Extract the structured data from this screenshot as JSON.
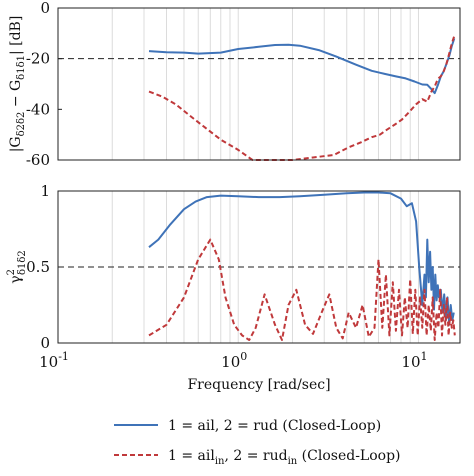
{
  "chart_data": [
    {
      "type": "line",
      "ylabel": "|G_{δ2δ2} − G_{δ1δ1}| [dB]",
      "ylabel_parts": [
        "|G",
        "δ2δ2",
        " − G",
        "δ1δ1",
        "| [dB]"
      ],
      "x_scale": "log",
      "xlim": [
        0.1,
        17
      ],
      "ylim": [
        -60,
        0
      ],
      "yticks": [
        0,
        -20,
        -40,
        -60
      ],
      "ytick_labels": [
        "0",
        "-20",
        "-40",
        "-60"
      ],
      "reference_line": -20,
      "vertical_grid": true,
      "series": [
        {
          "name": "1 = ail, 2 = rud (Closed-Loop)",
          "style": "solid",
          "color": "#3f73b8",
          "x": [
            0.32,
            0.4,
            0.5,
            0.6,
            0.8,
            1.0,
            1.3,
            1.6,
            1.9,
            2.2,
            2.8,
            3.5,
            4.5,
            5.5,
            6.5,
            7.5,
            8.5,
            9.5,
            10.5,
            11.2,
            11.8,
            12.3,
            12.8,
            13.3,
            13.8,
            14.3,
            14.8,
            15.3,
            15.8
          ],
          "y": [
            -17,
            -17.5,
            -17.6,
            -18,
            -17.6,
            -16.2,
            -15.3,
            -14.6,
            -14.5,
            -14.9,
            -16.6,
            -19.2,
            -22.4,
            -24.8,
            -26,
            -27,
            -27.8,
            -29,
            -30.2,
            -30.3,
            -32,
            -33.6,
            -30.5,
            -27,
            -25,
            -22,
            -19,
            -15,
            -12
          ]
        },
        {
          "name": "1 = ail_in, 2 = rud_in (Closed-Loop)",
          "style": "dashed",
          "color": "#c0393b",
          "x": [
            0.32,
            0.38,
            0.45,
            0.55,
            0.65,
            0.8,
            1.0,
            1.2,
            1.5,
            2.0,
            2.6,
            3.4,
            4.1,
            4.8,
            5.5,
            6.1,
            6.7,
            7.4,
            8.1,
            8.9,
            9.7,
            10.5,
            11.2,
            11.8,
            12.3,
            12.8,
            13.3,
            13.8,
            14.3,
            14.8,
            15.3,
            15.8
          ],
          "y": [
            -33,
            -35,
            -38,
            -43,
            -47,
            -52,
            -56,
            -60,
            -62,
            -60,
            -59,
            -58,
            -55,
            -53,
            -51,
            -50,
            -48,
            -46,
            -44,
            -41,
            -38,
            -36,
            -37,
            -33,
            -31,
            -28,
            -27,
            -25,
            -22,
            -18,
            -14,
            -11
          ]
        }
      ]
    },
    {
      "type": "line",
      "ylabel": "γ²_{δ1δ2}",
      "ylabel_parts": [
        "γ",
        "2",
        "δ1δ2"
      ],
      "xlabel": "Frequency [rad/sec]",
      "x_scale": "log",
      "xlim": [
        0.1,
        17
      ],
      "ylim": [
        0,
        1
      ],
      "yticks": [
        0,
        0.5,
        1
      ],
      "ytick_labels": [
        "0",
        "0.5",
        "1"
      ],
      "xticks": [
        0.1,
        1,
        10
      ],
      "xtick_labels": [
        [
          "10",
          "-1"
        ],
        [
          "10",
          "0"
        ],
        [
          "10",
          "1"
        ]
      ],
      "reference_line": 0.5,
      "vertical_grid": true,
      "legend_placement": "below-axes",
      "series": [
        {
          "name": "1 = ail, 2 = rud (Closed-Loop)",
          "style": "solid",
          "color": "#3f73b8",
          "x": [
            0.32,
            0.36,
            0.42,
            0.5,
            0.58,
            0.67,
            0.8,
            1.0,
            1.3,
            1.7,
            2.2,
            3.0,
            4.0,
            5.0,
            6.0,
            7.0,
            8.0,
            8.6,
            9.2,
            9.7,
            10.1,
            10.5,
            10.8,
            11.0,
            11.2,
            11.4,
            11.6,
            11.8,
            12.0,
            12.2,
            12.4,
            12.6,
            12.8,
            13.0,
            13.3,
            13.6,
            13.9,
            14.2,
            14.5,
            14.8,
            15.1,
            15.4,
            15.7
          ],
          "y": [
            0.63,
            0.68,
            0.78,
            0.88,
            0.93,
            0.96,
            0.97,
            0.965,
            0.96,
            0.96,
            0.965,
            0.975,
            0.985,
            0.99,
            0.99,
            0.985,
            0.95,
            0.9,
            0.92,
            0.8,
            0.5,
            0.25,
            0.45,
            0.3,
            0.68,
            0.4,
            0.6,
            0.35,
            0.5,
            0.22,
            0.45,
            0.28,
            0.38,
            0.3,
            0.35,
            0.2,
            0.32,
            0.15,
            0.3,
            0.12,
            0.25,
            0.15,
            0.2
          ]
        },
        {
          "name": "1 = ail_in, 2 = rud_in (Closed-Loop)",
          "style": "dashed",
          "color": "#c0393b",
          "x": [
            0.32,
            0.4,
            0.5,
            0.6,
            0.7,
            0.78,
            0.85,
            0.95,
            1.05,
            1.15,
            1.25,
            1.4,
            1.6,
            1.75,
            1.9,
            2.1,
            2.35,
            2.6,
            2.9,
            3.2,
            3.5,
            3.8,
            4.1,
            4.5,
            4.9,
            5.3,
            5.7,
            6.0,
            6.3,
            6.6,
            6.9,
            7.2,
            7.5,
            7.8,
            8.1,
            8.4,
            8.7,
            9.0,
            9.3,
            9.6,
            9.9,
            10.2,
            10.5,
            10.8,
            11.1,
            11.4,
            11.7,
            12.0,
            12.3,
            12.6,
            12.9,
            13.2,
            13.5,
            13.8,
            14.1,
            14.4,
            14.7,
            15.0,
            15.3,
            15.6,
            15.9
          ],
          "y": [
            0.05,
            0.12,
            0.3,
            0.55,
            0.68,
            0.55,
            0.3,
            0.12,
            0.05,
            0.02,
            0.1,
            0.32,
            0.12,
            0.02,
            0.25,
            0.35,
            0.12,
            0.06,
            0.2,
            0.32,
            0.1,
            0.03,
            0.2,
            0.1,
            0.25,
            0.04,
            0.1,
            0.55,
            0.1,
            0.45,
            0.05,
            0.4,
            0.08,
            0.35,
            0.05,
            0.3,
            0.1,
            0.42,
            0.06,
            0.35,
            0.05,
            0.3,
            0.1,
            0.35,
            0.05,
            0.25,
            0.08,
            0.3,
            0.02,
            0.2,
            0.1,
            0.35,
            0.05,
            0.25,
            0.12,
            0.3,
            0.05,
            0.2,
            0.1,
            0.15,
            0.05
          ]
        }
      ]
    }
  ],
  "legend": {
    "items": [
      {
        "prefix": "1 = ail, 2 = rud (Closed-Loop)",
        "sub1": "",
        "mid": "",
        "sub2": "",
        "suffix": "",
        "style": "solid",
        "color": "#3f73b8"
      },
      {
        "prefix": "1 = ail",
        "sub1": "in",
        "mid": ", 2 = rud",
        "sub2": "in",
        "suffix": " (Closed-Loop)",
        "style": "dashed",
        "color": "#c0393b"
      }
    ]
  }
}
